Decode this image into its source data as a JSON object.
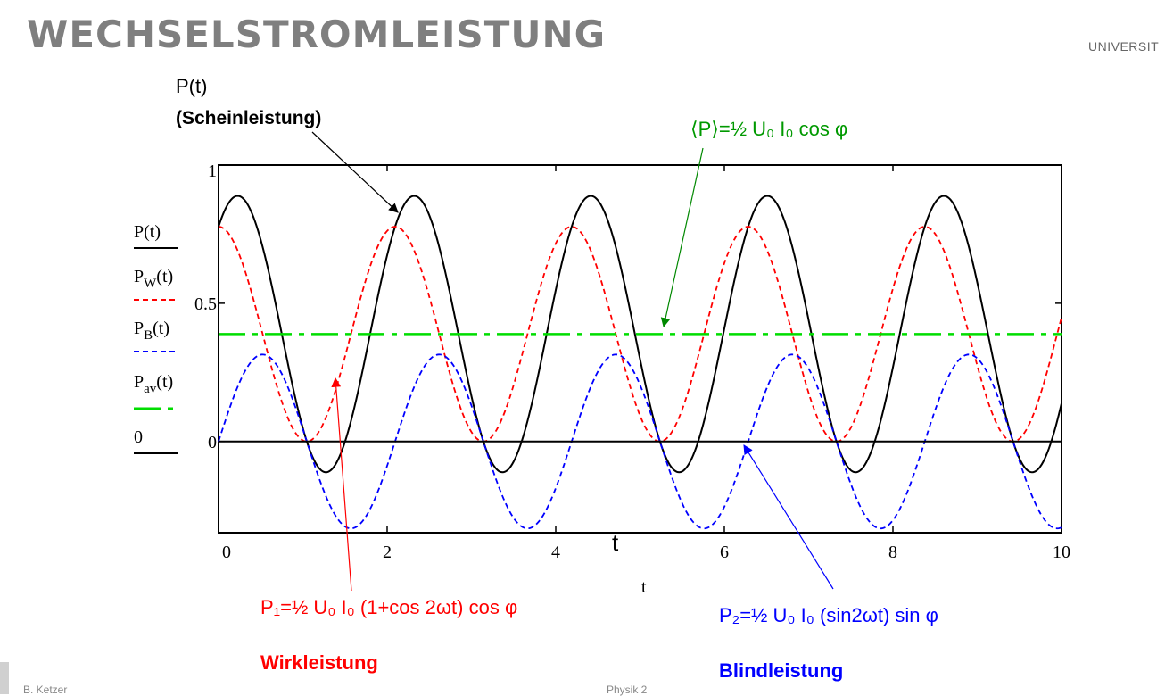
{
  "slide": {
    "title": "WECHSELSTROMLEISTUNG",
    "university": "UNIVERSIT",
    "footer_left": "B. Ketzer",
    "footer_center": "Physik 2"
  },
  "labels": {
    "p_title": "P(t)",
    "p_sub": "(Scheinleistung)",
    "avg": "⟨P⟩=½ U₀ I₀ cos φ",
    "p1": "P₁=½ U₀ I₀ (1+cos 2ωt) cos φ",
    "p1_name": "Wirkleistung",
    "p2": "P₂=½ U₀ I₀ (sin2ωt) sin φ",
    "p2_name": "Blindleistung",
    "t_big": "t"
  },
  "chart_data": {
    "type": "line",
    "xlabel": "t",
    "xlim": [
      0,
      10
    ],
    "ylim": [
      -0.33,
      1
    ],
    "x_ticks": [
      "0",
      "2",
      "4",
      "6",
      "8",
      "10"
    ],
    "y_ticks": [
      "0",
      "0.5",
      "1"
    ],
    "grid": false,
    "legend_position": "left",
    "model": {
      "omega": 1.5,
      "U0I0": 1.0,
      "phi_deg": 39
    },
    "series": [
      {
        "name": "P(t)",
        "formula": "U0I0·cos(ωt)·cos(ωt−φ)",
        "color": "#000000",
        "dash": "solid"
      },
      {
        "name": "P_W(t)",
        "formula": "½·U0I0·(1+cos 2ωt)·cos φ",
        "color": "#ff0000",
        "dash": "short"
      },
      {
        "name": "P_B(t)",
        "formula": "½·U0I0·sin 2ωt·sin φ",
        "color": "#0000ff",
        "dash": "short"
      },
      {
        "name": "P_av(t)",
        "formula": "½·U0I0·cos φ",
        "color": "#00dd00",
        "dash": "long"
      },
      {
        "name": "0",
        "formula": "0",
        "color": "#000000",
        "dash": "solid"
      }
    ],
    "colors": {
      "black": "#000000",
      "red": "#ff0000",
      "blue": "#0000ff",
      "green": "#00dd00",
      "dark_green": "#008800",
      "title_grey": "#7f7f7f"
    }
  }
}
